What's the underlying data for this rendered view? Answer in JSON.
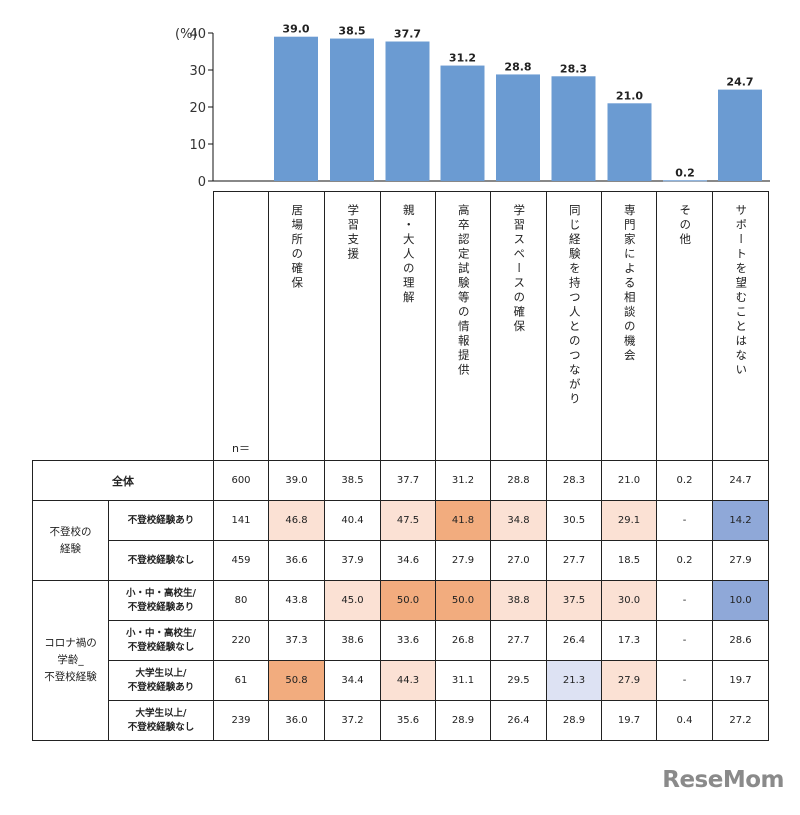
{
  "chart_data": {
    "type": "bar",
    "y_unit_label": "(%)",
    "ylim": [
      0,
      40
    ],
    "yticks": [
      0,
      10,
      20,
      30,
      40
    ],
    "categories": [
      "居場所の確保",
      "学習支援",
      "親・大人の理解",
      "高卒認定試験等の情報提供",
      "学習スペースの確保",
      "同じ経験を持つ人とのつながり",
      "専門家による相談の機会",
      "その他",
      "サポートを望むことはない"
    ],
    "values": [
      39.0,
      38.5,
      37.7,
      31.2,
      28.8,
      28.3,
      21.0,
      0.2,
      24.7
    ],
    "value_labels": [
      "39.0",
      "38.5",
      "37.7",
      "31.2",
      "28.8",
      "28.3",
      "21.0",
      "0.2",
      "24.7"
    ],
    "bar_color": "#6b9bd2"
  },
  "table": {
    "n_header": "n＝",
    "total_label": "全体",
    "group1_label": "不登校の\n経験",
    "group2_label": "コロナ禍の\n学齢_\n不登校経験",
    "rows": [
      {
        "label": "不登校経験あり",
        "n": "141",
        "cells": [
          "46.8",
          "40.4",
          "47.5",
          "41.8",
          "34.8",
          "30.5",
          "29.1",
          "-",
          "14.2"
        ],
        "shade": [
          "light",
          "",
          "light",
          "mid",
          "light",
          "",
          "light",
          "",
          "blue"
        ]
      },
      {
        "label": "不登校経験なし",
        "n": "459",
        "cells": [
          "36.6",
          "37.9",
          "34.6",
          "27.9",
          "27.0",
          "27.7",
          "18.5",
          "0.2",
          "27.9"
        ],
        "shade": [
          "",
          "",
          "",
          "",
          "",
          "",
          "",
          "",
          ""
        ]
      },
      {
        "label": "小・中・高校生/\n不登校経験あり",
        "n": "80",
        "cells": [
          "43.8",
          "45.0",
          "50.0",
          "50.0",
          "38.8",
          "37.5",
          "30.0",
          "-",
          "10.0"
        ],
        "shade": [
          "",
          "light",
          "mid",
          "mid",
          "light",
          "light",
          "light",
          "",
          "blue"
        ]
      },
      {
        "label": "小・中・高校生/\n不登校経験なし",
        "n": "220",
        "cells": [
          "37.3",
          "38.6",
          "33.6",
          "26.8",
          "27.7",
          "26.4",
          "17.3",
          "-",
          "28.6"
        ],
        "shade": [
          "",
          "",
          "",
          "",
          "",
          "",
          "",
          "",
          ""
        ]
      },
      {
        "label": "大学生以上/\n不登校経験あり",
        "n": "61",
        "cells": [
          "50.8",
          "34.4",
          "44.3",
          "31.1",
          "29.5",
          "21.3",
          "27.9",
          "-",
          "19.7"
        ],
        "shade": [
          "mid",
          "",
          "light",
          "",
          "",
          "lightblue",
          "light",
          "",
          ""
        ]
      },
      {
        "label": "大学生以上/\n不登校経験なし",
        "n": "239",
        "cells": [
          "36.0",
          "37.2",
          "35.6",
          "28.9",
          "26.4",
          "28.9",
          "19.7",
          "0.4",
          "27.2"
        ],
        "shade": [
          "",
          "",
          "",
          "",
          "",
          "",
          "",
          "",
          ""
        ]
      }
    ],
    "total_row": {
      "n": "600",
      "cells": [
        "39.0",
        "38.5",
        "37.7",
        "31.2",
        "28.8",
        "28.3",
        "21.0",
        "0.2",
        "24.7"
      ]
    },
    "shade_colors": {
      "light": "#fbe1d4",
      "mid": "#f2ac7e",
      "blue": "#8fa8d8",
      "lightblue": "#dde2f3"
    }
  },
  "logo_text": "ReseMom"
}
